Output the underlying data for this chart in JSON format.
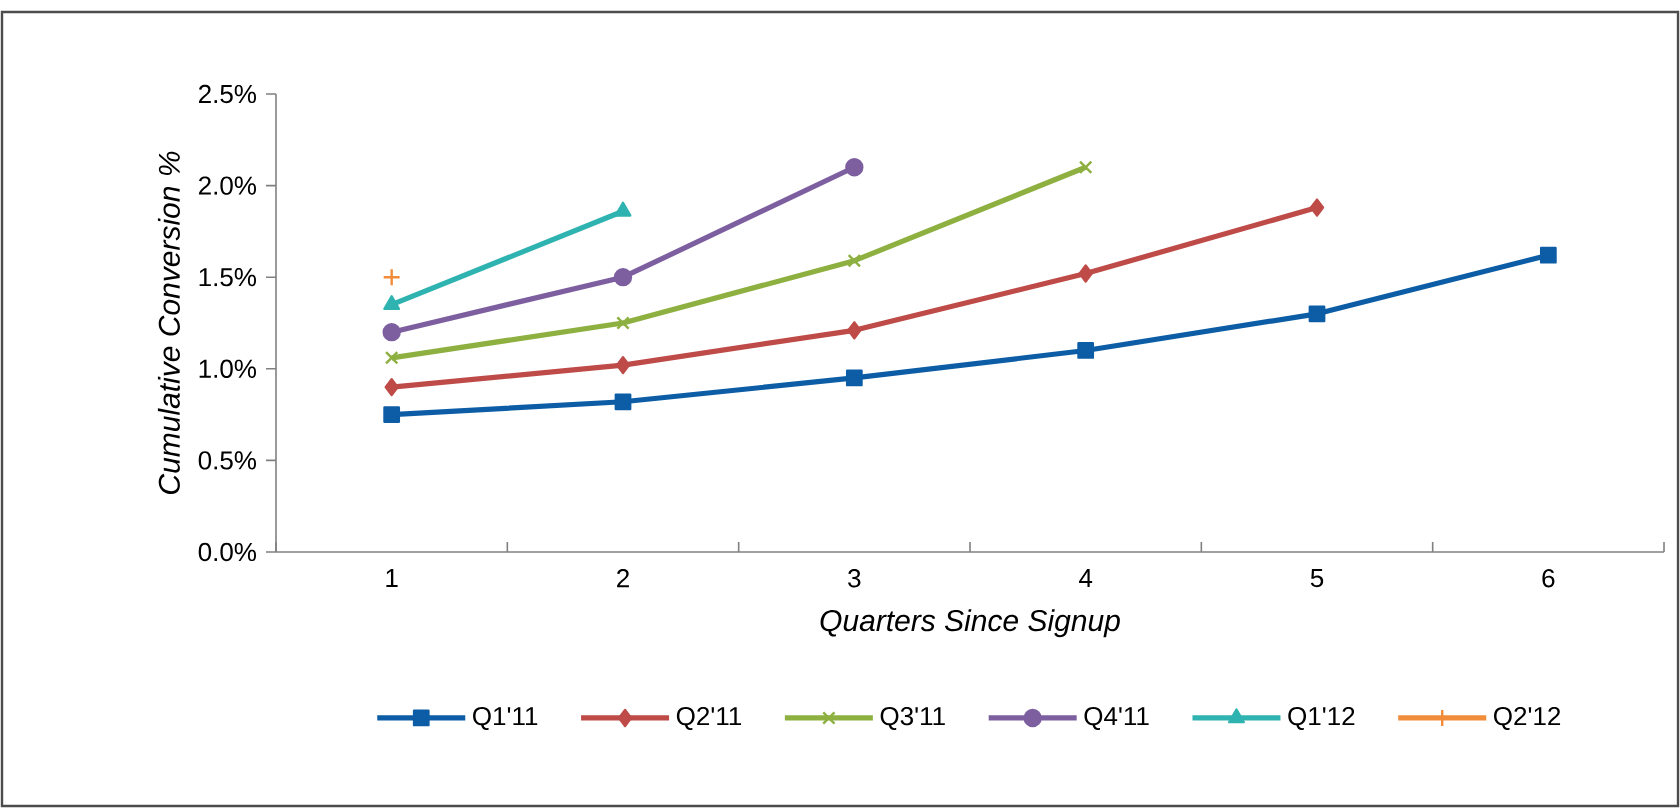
{
  "chart_data": {
    "type": "line",
    "xlabel": "Quarters Since Signup",
    "ylabel": "Cumulative Conversion %",
    "categories": [
      "1",
      "2",
      "3",
      "4",
      "5",
      "6"
    ],
    "series": [
      {
        "name": "Q1'11",
        "color": "#0c5da5",
        "marker": "square",
        "values": [
          0.75,
          0.82,
          0.95,
          1.1,
          1.3,
          1.62
        ]
      },
      {
        "name": "Q2'11",
        "color": "#be4b48",
        "marker": "diamond",
        "values": [
          0.9,
          1.02,
          1.21,
          1.52,
          1.88,
          null
        ]
      },
      {
        "name": "Q3'11",
        "color": "#8db040",
        "marker": "cross",
        "values": [
          1.06,
          1.25,
          1.59,
          2.1,
          null,
          null
        ]
      },
      {
        "name": "Q4'11",
        "color": "#7d5fa0",
        "marker": "circle",
        "values": [
          1.2,
          1.5,
          2.1,
          null,
          null,
          null
        ]
      },
      {
        "name": "Q1'12",
        "color": "#2fb3b0",
        "marker": "triangle",
        "values": [
          1.35,
          1.86,
          null,
          null,
          null,
          null
        ]
      },
      {
        "name": "Q2'12",
        "color": "#f18c3a",
        "marker": "plus",
        "values": [
          1.5,
          null,
          null,
          null,
          null,
          null
        ]
      }
    ],
    "ylim": [
      0,
      2.5
    ],
    "yticks": [
      {
        "value": 0,
        "label": "0.0%"
      },
      {
        "value": 0.5,
        "label": "0.5%"
      },
      {
        "value": 1.0,
        "label": "1.0%"
      },
      {
        "value": 1.5,
        "label": "1.5%"
      },
      {
        "value": 2.0,
        "label": "2.0%"
      },
      {
        "value": 2.5,
        "label": "2.5%"
      }
    ],
    "grid": false,
    "legend": "bottom",
    "line_style": "solid"
  }
}
